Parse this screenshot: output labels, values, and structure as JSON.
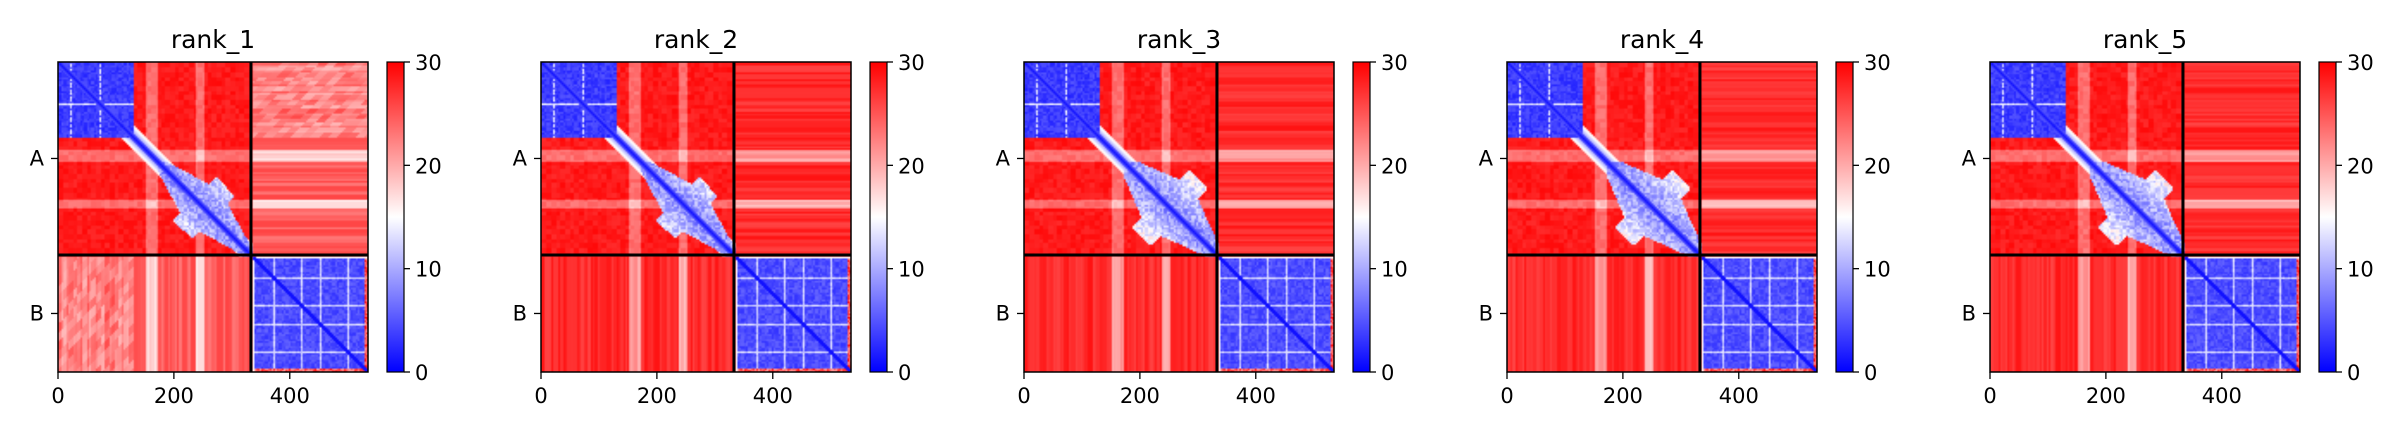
{
  "chart_data": [
    {
      "type": "heatmap",
      "title": "rank_1",
      "variant": 1,
      "x_ticks": [
        0,
        200,
        400
      ],
      "xlim": [
        0,
        535
      ],
      "y_tick_labels": [
        "A",
        "B"
      ],
      "chain_boundary": 333,
      "colorbar": {
        "min": 0,
        "max": 30,
        "ticks": [
          0,
          10,
          20,
          30
        ],
        "colors": [
          "#0000ff",
          "#ffffff",
          "#ff0000"
        ]
      }
    },
    {
      "type": "heatmap",
      "title": "rank_2",
      "variant": 2,
      "x_ticks": [
        0,
        200,
        400
      ],
      "xlim": [
        0,
        535
      ],
      "y_tick_labels": [
        "A",
        "B"
      ],
      "chain_boundary": 333,
      "colorbar": {
        "min": 0,
        "max": 30,
        "ticks": [
          0,
          10,
          20,
          30
        ],
        "colors": [
          "#0000ff",
          "#ffffff",
          "#ff0000"
        ]
      }
    },
    {
      "type": "heatmap",
      "title": "rank_3",
      "variant": 3,
      "x_ticks": [
        0,
        200,
        400
      ],
      "xlim": [
        0,
        535
      ],
      "y_tick_labels": [
        "A",
        "B"
      ],
      "chain_boundary": 333,
      "colorbar": {
        "min": 0,
        "max": 30,
        "ticks": [
          0,
          10,
          20,
          30
        ],
        "colors": [
          "#0000ff",
          "#ffffff",
          "#ff0000"
        ]
      }
    },
    {
      "type": "heatmap",
      "title": "rank_4",
      "variant": 4,
      "x_ticks": [
        0,
        200,
        400
      ],
      "xlim": [
        0,
        535
      ],
      "y_tick_labels": [
        "A",
        "B"
      ],
      "chain_boundary": 333,
      "colorbar": {
        "min": 0,
        "max": 30,
        "ticks": [
          0,
          10,
          20,
          30
        ],
        "colors": [
          "#0000ff",
          "#ffffff",
          "#ff0000"
        ]
      }
    },
    {
      "type": "heatmap",
      "title": "rank_5",
      "variant": 5,
      "x_ticks": [
        0,
        200,
        400
      ],
      "xlim": [
        0,
        535
      ],
      "y_tick_labels": [
        "A",
        "B"
      ],
      "chain_boundary": 333,
      "colorbar": {
        "min": 0,
        "max": 30,
        "ticks": [
          0,
          10,
          20,
          30
        ],
        "colors": [
          "#0000ff",
          "#ffffff",
          "#ff0000"
        ]
      }
    }
  ]
}
